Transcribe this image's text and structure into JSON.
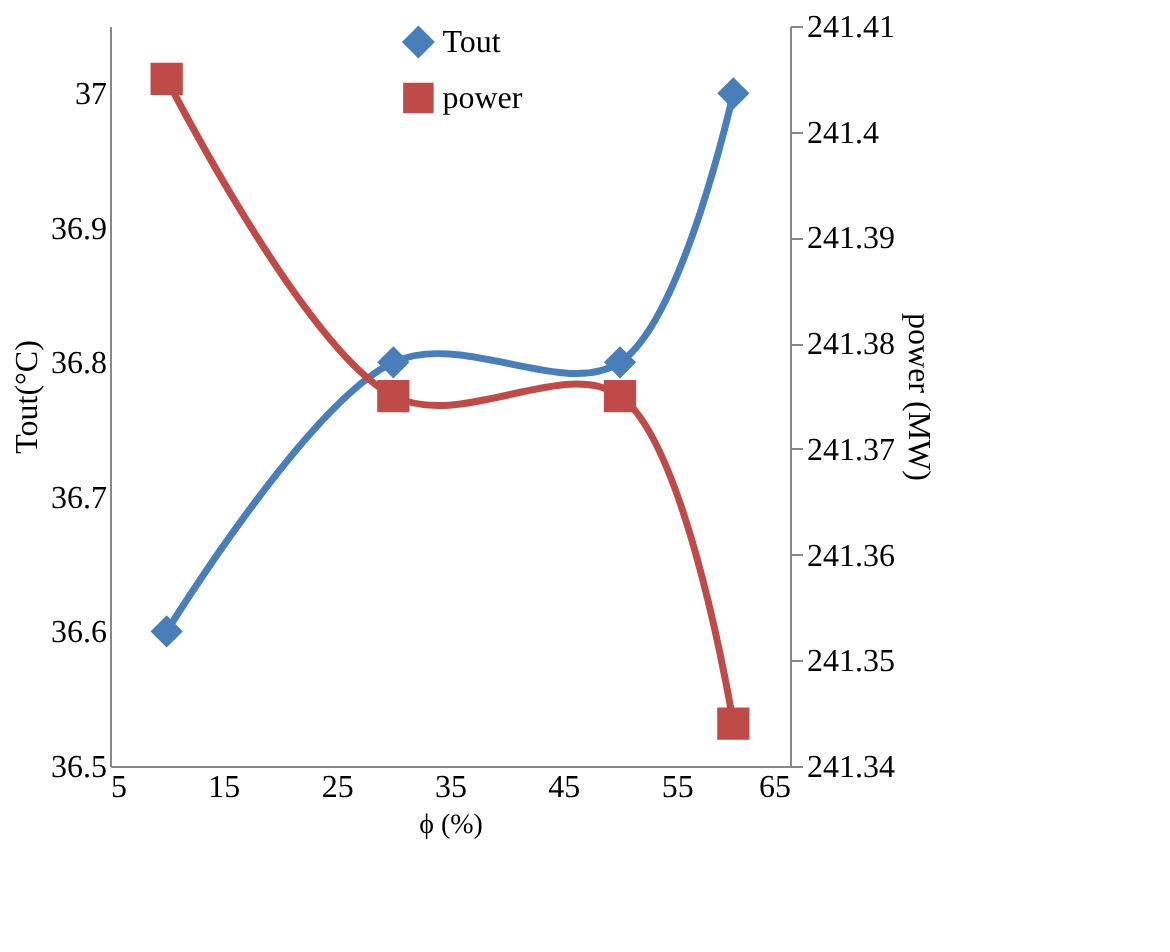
{
  "chart_data": {
    "type": "line",
    "xlabel": "ϕ (%)",
    "ylabel": "Tout(°C)",
    "y2label": "power (MW)",
    "x": [
      10,
      30,
      50,
      60
    ],
    "series": [
      {
        "name": "Tout",
        "color": "#4a7ebb",
        "marker": "diamond",
        "values": [
          36.6,
          36.8,
          36.8,
          37.0
        ]
      },
      {
        "name": "power",
        "color": "#be4b48",
        "marker": "square",
        "axis": "y2",
        "values": [
          241.405,
          241.375,
          241.375,
          241.344
        ]
      }
    ],
    "xlim": [
      5,
      65
    ],
    "xticks": [
      5,
      15,
      25,
      35,
      45,
      55,
      65
    ],
    "ylim": [
      36.5,
      37.05
    ],
    "yticks": [
      36.5,
      36.6,
      36.7,
      36.8,
      36.9,
      37
    ],
    "y2lim": [
      241.34,
      241.41
    ],
    "y2ticks": [
      241.34,
      241.35,
      241.36,
      241.37,
      241.38,
      241.39,
      241.4,
      241.41
    ],
    "grid": false,
    "legend": "top",
    "line_style": "solid"
  }
}
